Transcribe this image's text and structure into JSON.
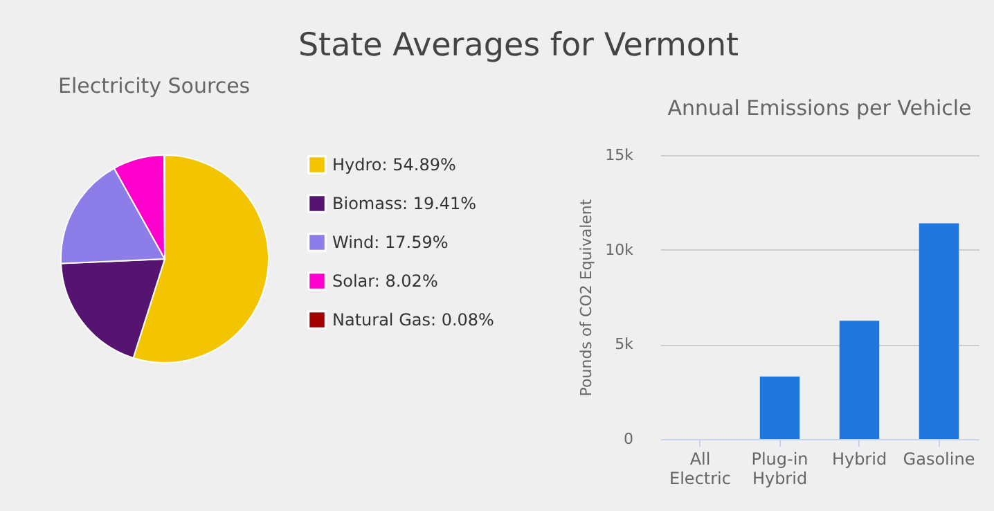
{
  "chart_data": [
    {
      "type": "other",
      "title": "State Averages for Vermont"
    },
    {
      "type": "pie",
      "title": "Electricity Sources",
      "categories": [
        "Hydro",
        "Biomass",
        "Wind",
        "Solar",
        "Natural Gas"
      ],
      "values": [
        54.89,
        19.41,
        17.59,
        8.02,
        0.08
      ],
      "value_labels": [
        "54.89%",
        "19.41%",
        "17.59%",
        "8.02%",
        "0.08%"
      ],
      "colors": [
        "#f2c500",
        "#541470",
        "#8c7de8",
        "#ff00cc",
        "#a50000"
      ],
      "legend": "right"
    },
    {
      "type": "bar",
      "title": "Annual Emissions per Vehicle",
      "ylabel": "Pounds of CO2 Equivalent",
      "categories": [
        "All Electric",
        "Plug-in Hybrid",
        "Hybrid",
        "Gasoline"
      ],
      "values": [
        0,
        3300,
        6250,
        11400
      ],
      "color": "#1f77dd",
      "ylim": [
        0,
        15000
      ],
      "yticks": [
        0,
        {
          "value": 5000,
          "label": "5k"
        },
        {
          "value": 10000,
          "label": "10k"
        },
        {
          "value": 15000,
          "label": "15k"
        }
      ],
      "grid": "y"
    }
  ]
}
